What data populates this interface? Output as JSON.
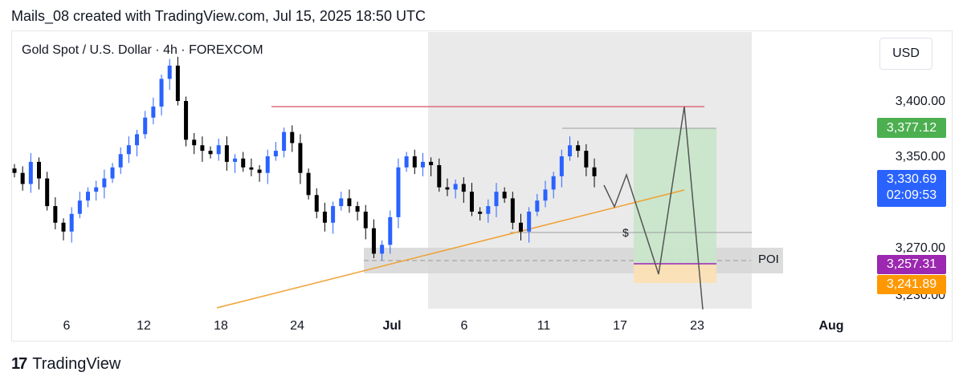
{
  "header": {
    "title": "Mails_08 created with TradingView.com, Jul 15, 2025 18:50 UTC"
  },
  "symbol": {
    "label": "Gold Spot / U.S. Dollar · 4h · FOREXCOM"
  },
  "currency_button": {
    "label": "USD"
  },
  "poi_label": "POI",
  "dollar_label": "$",
  "footer": {
    "brand": "TradingView",
    "logo_glyph": "17"
  },
  "colors": {
    "bull": "#2962ff",
    "bear": "#000000",
    "resistance": "#e06b80",
    "trendline": "#f0a030",
    "target_zone": "#c8e6c9",
    "stop_zone": "#fde0b3",
    "shade_zone": "#e6e6e6",
    "poi_zone": "#d9d9d9",
    "label_green": "#4caf50",
    "label_blue": "#2962ff",
    "label_purple": "#9c27b0",
    "label_orange": "#ff9800"
  },
  "chart_data": {
    "type": "candlestick",
    "title": "Gold Spot / U.S. Dollar · 4h · FOREXCOM",
    "y_axis_ticks": [
      "3,400.00",
      "3,350.00",
      "3,270.00",
      "3,230.00"
    ],
    "x_axis_ticks": [
      "6",
      "12",
      "18",
      "24",
      "Jul",
      "6",
      "11",
      "17",
      "23",
      "Aug"
    ],
    "ylim": [
      3220,
      3450
    ],
    "price_labels": [
      {
        "text": "3,377.12",
        "color": "#4caf50"
      },
      {
        "text": "3,330.69",
        "sub": "02:09:53",
        "color": "#2962ff"
      },
      {
        "text": "3,257.31",
        "color": "#9c27b0"
      },
      {
        "text": "3,241.89",
        "color": "#ff9800"
      }
    ],
    "approx_closes": [
      3335,
      3325,
      3345,
      3330,
      3305,
      3290,
      3282,
      3298,
      3310,
      3318,
      3322,
      3330,
      3340,
      3352,
      3360,
      3370,
      3385,
      3395,
      3420,
      3432,
      3400,
      3365,
      3360,
      3355,
      3352,
      3360,
      3345,
      3348,
      3340,
      3338,
      3335,
      3350,
      3355,
      3372,
      3362,
      3335,
      3315,
      3300,
      3290,
      3305,
      3312,
      3305,
      3300,
      3285,
      3262,
      3270,
      3295,
      3340,
      3350,
      3340,
      3345,
      3342,
      3322,
      3320,
      3325,
      3318,
      3300,
      3298,
      3305,
      3318,
      3312,
      3290,
      3282,
      3300,
      3310,
      3320,
      3332,
      3350,
      3360,
      3355,
      3340,
      3332
    ]
  }
}
